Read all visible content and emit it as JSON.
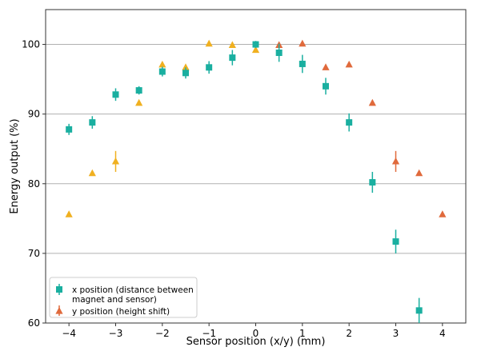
{
  "chart_data": {
    "type": "scatter",
    "xlabel": "Sensor position (x/y) (mm)",
    "ylabel": "Energy output (%)",
    "xlim": [
      -4.5,
      4.5
    ],
    "ylim": [
      60,
      105
    ],
    "xticks": [
      -4,
      -3,
      -2,
      -1,
      0,
      1,
      2,
      3,
      4
    ],
    "yticks": [
      60,
      70,
      80,
      90,
      100
    ],
    "grid": "horizontal",
    "legend_position": "bottom-left",
    "colors": {
      "x_series": "#1aafa0",
      "y_series_left": "#f0b020",
      "y_series_right": "#e06a3c"
    },
    "series": [
      {
        "name": "x position (distance between magnet and sensor)",
        "marker": "square",
        "color": "#1aafa0",
        "points": [
          {
            "x": -4.0,
            "y": 87.8,
            "err": 0.8
          },
          {
            "x": -3.5,
            "y": 88.8,
            "err": 0.9
          },
          {
            "x": -3.0,
            "y": 92.8,
            "err": 0.9
          },
          {
            "x": -2.5,
            "y": 93.4,
            "err": 0.6
          },
          {
            "x": -2.0,
            "y": 96.1,
            "err": 0.7
          },
          {
            "x": -1.5,
            "y": 95.9,
            "err": 0.8
          },
          {
            "x": -1.0,
            "y": 96.7,
            "err": 0.9
          },
          {
            "x": -0.5,
            "y": 98.1,
            "err": 1.1
          },
          {
            "x": 0.0,
            "y": 100.0,
            "err": 0.5
          },
          {
            "x": 0.5,
            "y": 98.8,
            "err": 1.3
          },
          {
            "x": 1.0,
            "y": 97.2,
            "err": 1.3
          },
          {
            "x": 1.5,
            "y": 94.0,
            "err": 1.2
          },
          {
            "x": 2.0,
            "y": 88.8,
            "err": 1.3
          },
          {
            "x": 2.5,
            "y": 80.2,
            "err": 1.5
          },
          {
            "x": 3.0,
            "y": 71.7,
            "err": 1.7
          },
          {
            "x": 3.5,
            "y": 61.8,
            "err": 1.8
          }
        ]
      },
      {
        "name": "y position (height shift)",
        "marker": "triangle",
        "color": "#e06a3c",
        "points": [
          {
            "x": -4.0,
            "y": 75.6,
            "err": 0,
            "color": "#f0b020"
          },
          {
            "x": -3.5,
            "y": 81.5,
            "err": 0,
            "color": "#f0b020"
          },
          {
            "x": -3.0,
            "y": 83.2,
            "err": 1.5,
            "color": "#f0b020"
          },
          {
            "x": -2.5,
            "y": 91.6,
            "err": 0,
            "color": "#f0b020"
          },
          {
            "x": -2.0,
            "y": 97.1,
            "err": 0,
            "color": "#f0b020"
          },
          {
            "x": -1.5,
            "y": 96.7,
            "err": 0,
            "color": "#f0b020"
          },
          {
            "x": -1.0,
            "y": 100.1,
            "err": 0,
            "color": "#f0b020"
          },
          {
            "x": -0.5,
            "y": 99.9,
            "err": 0,
            "color": "#f0b020"
          },
          {
            "x": 0.0,
            "y": 99.2,
            "err": 0,
            "color": "#f0b020"
          },
          {
            "x": 0.5,
            "y": 99.9,
            "err": 0,
            "color": "#e06a3c"
          },
          {
            "x": 1.0,
            "y": 100.1,
            "err": 0,
            "color": "#e06a3c"
          },
          {
            "x": 1.5,
            "y": 96.7,
            "err": 0,
            "color": "#e06a3c"
          },
          {
            "x": 2.0,
            "y": 97.1,
            "err": 0,
            "color": "#e06a3c"
          },
          {
            "x": 2.5,
            "y": 91.6,
            "err": 0,
            "color": "#e06a3c"
          },
          {
            "x": 3.0,
            "y": 83.2,
            "err": 1.5,
            "color": "#e06a3c"
          },
          {
            "x": 3.5,
            "y": 81.5,
            "err": 0,
            "color": "#e06a3c"
          },
          {
            "x": 4.0,
            "y": 75.6,
            "err": 0,
            "color": "#e06a3c"
          }
        ]
      }
    ],
    "legend": {
      "entries": [
        {
          "lines": [
            "x position (distance between",
            "magnet and sensor)"
          ],
          "marker": "square",
          "color": "#1aafa0"
        },
        {
          "lines": [
            "y position (height shift)"
          ],
          "marker": "triangle",
          "color": "#e06a3c"
        }
      ]
    }
  }
}
